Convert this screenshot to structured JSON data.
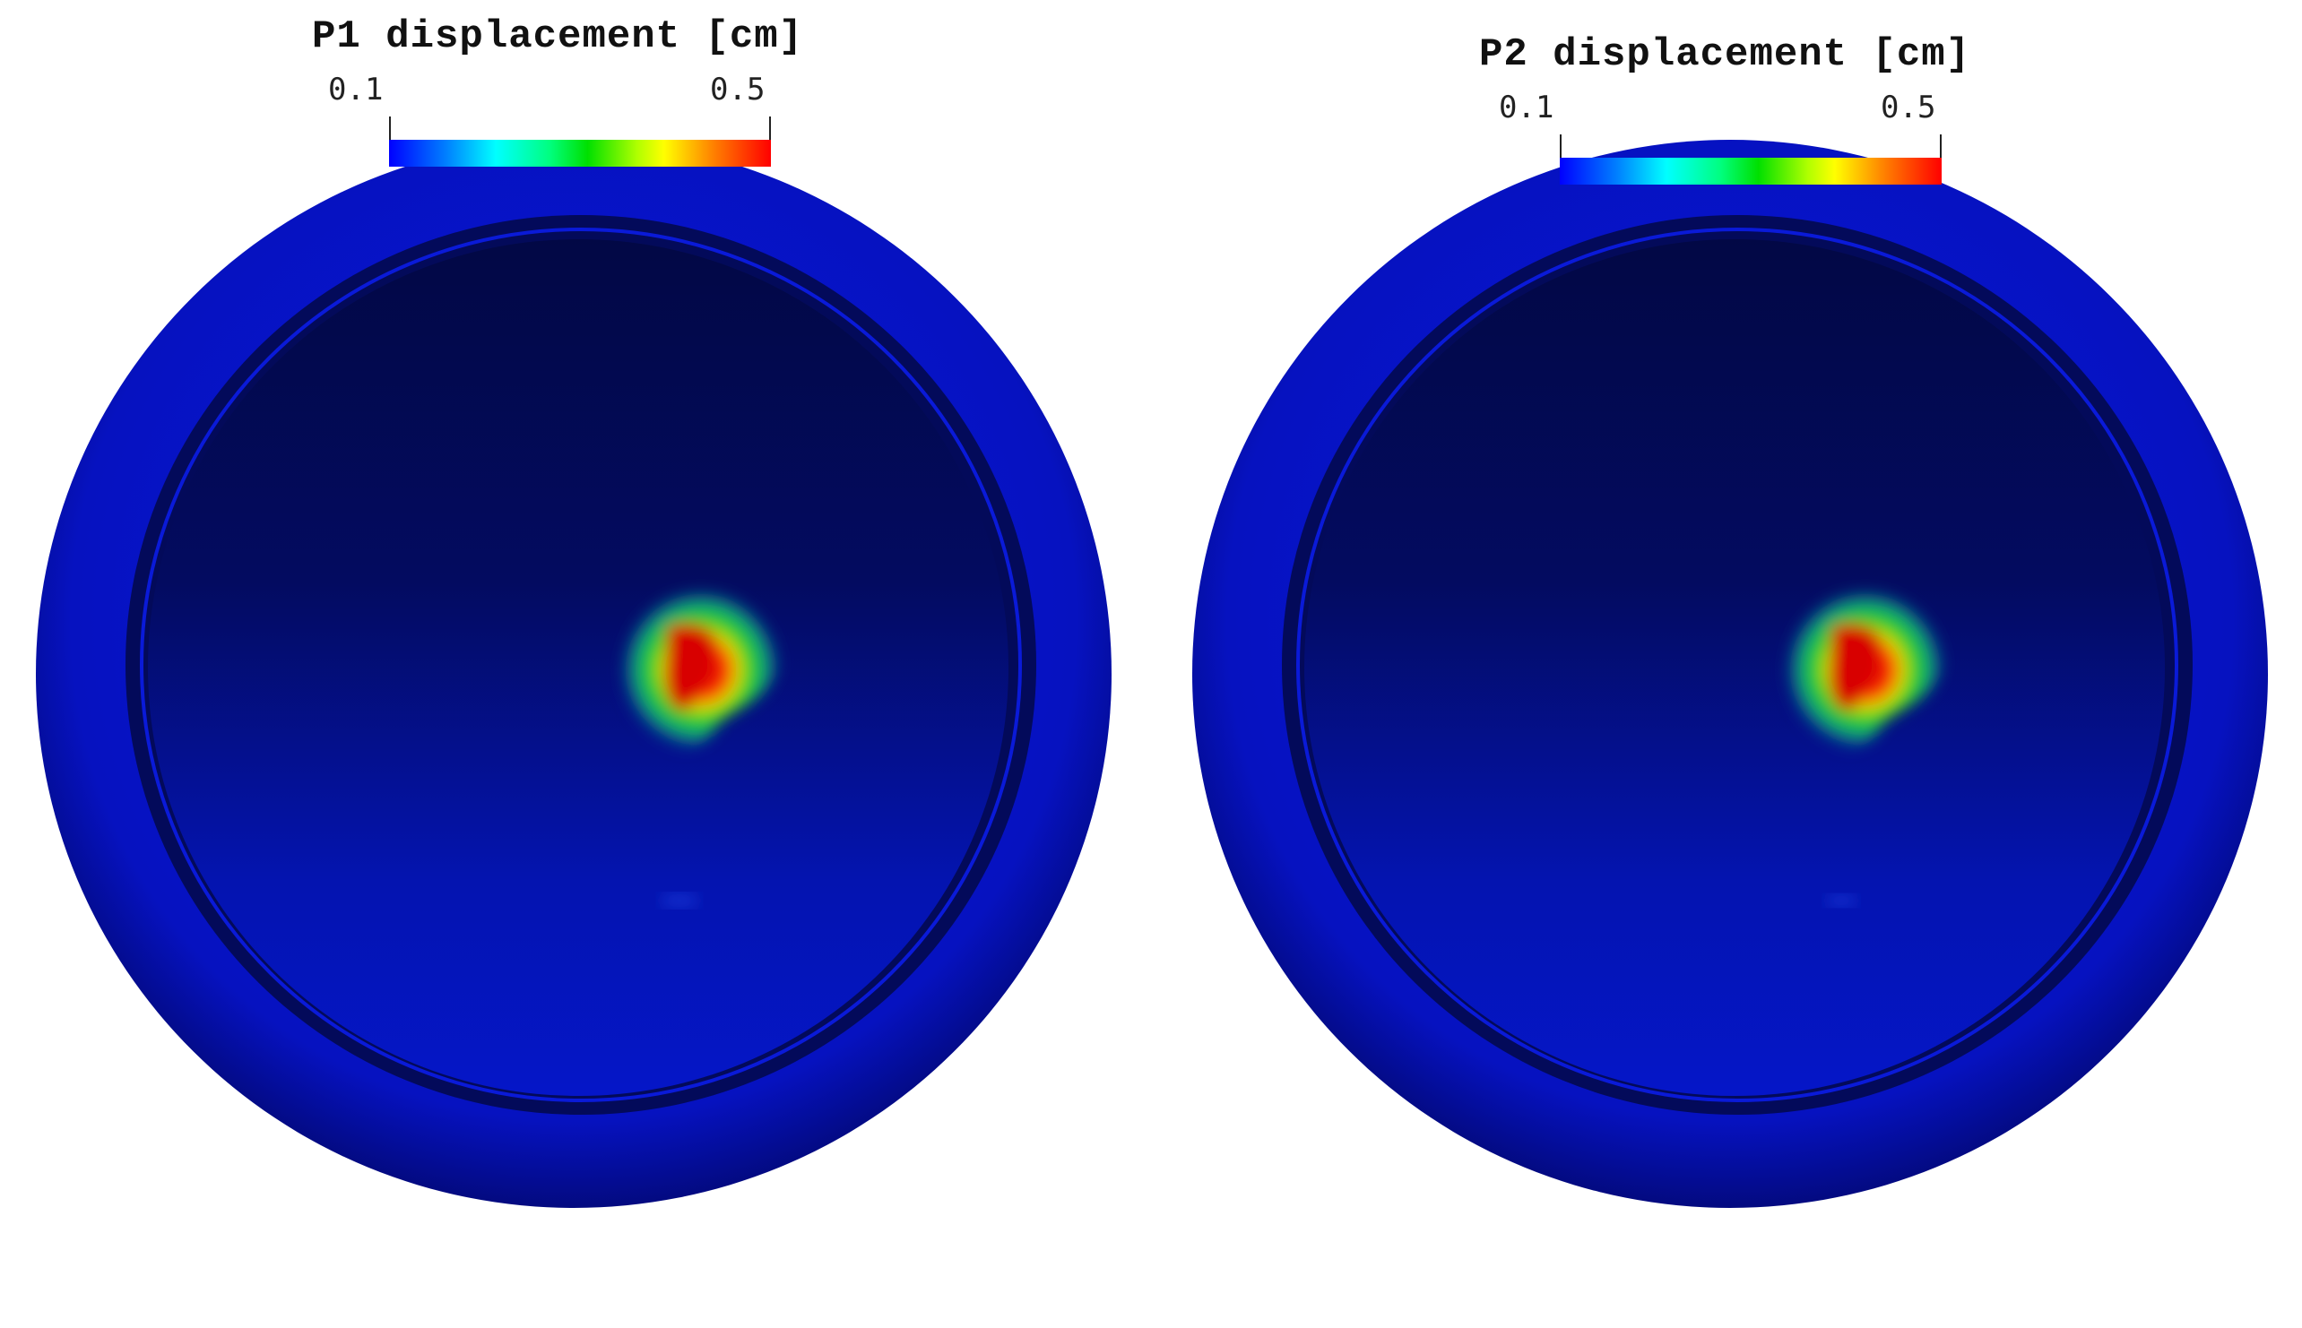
{
  "panels": [
    {
      "title": "P1 displacement [cm]",
      "colorbar": {
        "min_label": "0.1",
        "max_label": "0.5",
        "colors": [
          "#0000ff",
          "#00ffff",
          "#00e000",
          "#ffff00",
          "#ff0000"
        ]
      }
    },
    {
      "title": "P2 displacement [cm]",
      "colorbar": {
        "min_label": "0.1",
        "max_label": "0.5",
        "colors": [
          "#0000ff",
          "#00ffff",
          "#00e000",
          "#ffff00",
          "#ff0000"
        ]
      }
    }
  ],
  "colors": {
    "outer_ring": "#0a14c8",
    "inner_dark": "#020a50",
    "hotspot": "#ff0000"
  }
}
